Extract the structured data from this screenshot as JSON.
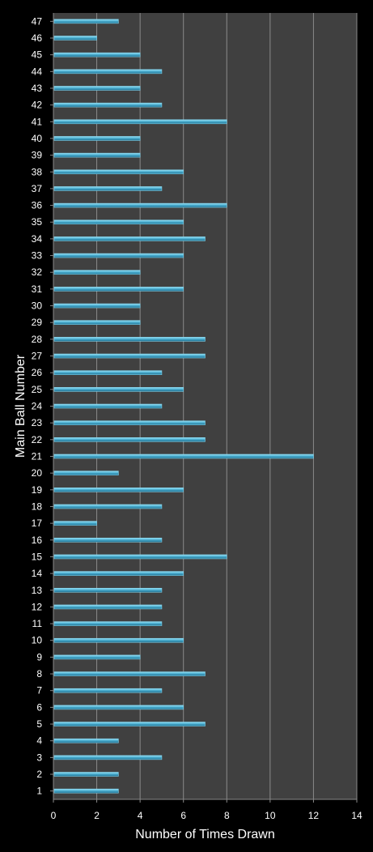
{
  "chart_data": {
    "type": "bar",
    "orientation": "horizontal",
    "categories": [
      "1",
      "2",
      "3",
      "4",
      "5",
      "6",
      "7",
      "8",
      "9",
      "10",
      "11",
      "12",
      "13",
      "14",
      "15",
      "16",
      "17",
      "18",
      "19",
      "20",
      "21",
      "22",
      "23",
      "24",
      "25",
      "26",
      "27",
      "28",
      "29",
      "30",
      "31",
      "32",
      "33",
      "34",
      "35",
      "36",
      "37",
      "38",
      "39",
      "40",
      "41",
      "42",
      "43",
      "44",
      "45",
      "46",
      "47"
    ],
    "values": [
      3,
      3,
      5,
      3,
      7,
      6,
      5,
      7,
      4,
      6,
      5,
      5,
      5,
      6,
      8,
      5,
      2,
      5,
      6,
      3,
      12,
      7,
      7,
      5,
      6,
      5,
      7,
      7,
      4,
      4,
      6,
      4,
      6,
      7,
      6,
      8,
      5,
      6,
      4,
      4,
      8,
      5,
      4,
      5,
      4,
      2,
      3
    ],
    "xlabel": "Number of Times Drawn",
    "ylabel": "Main Ball Number",
    "xlim": [
      0,
      14
    ],
    "xticks": [
      0,
      2,
      4,
      6,
      8,
      10,
      12,
      14
    ],
    "grid": "vertical",
    "legend": "none",
    "colors": {
      "background": "#000000",
      "plot_area": "#404040",
      "gridline": "#8a8a8a",
      "bar": "#4aaed0",
      "bar_edge": "#1f6f8f",
      "text": "#ffffff"
    }
  }
}
